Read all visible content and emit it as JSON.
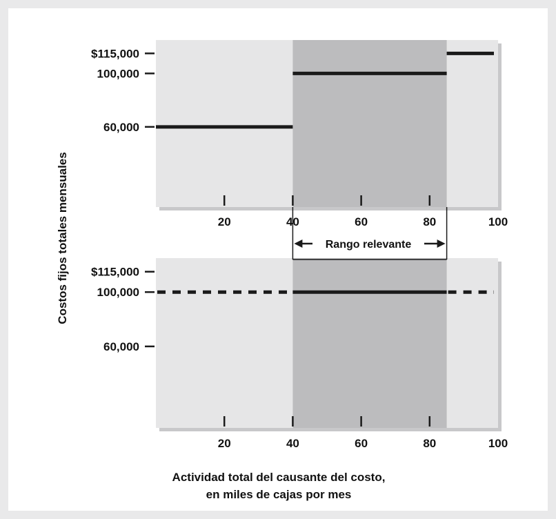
{
  "chart_data": [
    {
      "type": "line",
      "panel": "top",
      "x_range": [
        0,
        100
      ],
      "y_range": [
        0,
        125000
      ],
      "y_ticks": [
        {
          "value": 60000,
          "label": "60,000"
        },
        {
          "value": 100000,
          "label": "100,000"
        },
        {
          "value": 115000,
          "label": "$115,000"
        }
      ],
      "x_ticks": [
        {
          "value": 20,
          "label": "20"
        },
        {
          "value": 40,
          "label": "40"
        },
        {
          "value": 60,
          "label": "60"
        },
        {
          "value": 80,
          "label": "80"
        },
        {
          "value": 100,
          "label": "100"
        }
      ],
      "shaded_range": [
        40,
        85
      ],
      "segments": [
        {
          "x0": 0,
          "x1": 40,
          "y": 60000,
          "style": "solid"
        },
        {
          "x0": 40,
          "x1": 85,
          "y": 100000,
          "style": "solid"
        },
        {
          "x0": 85,
          "x1": 100,
          "y": 115000,
          "style": "solid"
        }
      ]
    },
    {
      "type": "line",
      "panel": "bottom",
      "x_range": [
        0,
        100
      ],
      "y_range": [
        0,
        125000
      ],
      "y_ticks": [
        {
          "value": 60000,
          "label": "60,000"
        },
        {
          "value": 100000,
          "label": "100,000"
        },
        {
          "value": 115000,
          "label": "$115,000"
        }
      ],
      "x_ticks": [
        {
          "value": 20,
          "label": "20"
        },
        {
          "value": 40,
          "label": "40"
        },
        {
          "value": 60,
          "label": "60"
        },
        {
          "value": 80,
          "label": "80"
        },
        {
          "value": 100,
          "label": "100"
        }
      ],
      "shaded_range": [
        40,
        85
      ],
      "segments": [
        {
          "x0": 0,
          "x1": 40,
          "y": 100000,
          "style": "dashed"
        },
        {
          "x0": 40,
          "x1": 85,
          "y": 100000,
          "style": "solid"
        },
        {
          "x0": 85,
          "x1": 100,
          "y": 100000,
          "style": "dashed"
        }
      ]
    }
  ],
  "labels": {
    "y_axis": "Costos fijos totales mensuales",
    "x_axis_line1": "Actividad total del causante del costo,",
    "x_axis_line2": "en miles de cajas por mes",
    "relevant_range": "Rango relevante"
  },
  "colors": {
    "panel_light": "#e6e6e7",
    "panel_shadow": "#c8c8ca",
    "relevant_range": "#bcbcbe",
    "line": "#1a1a1a",
    "background": "#e9e9ea"
  }
}
